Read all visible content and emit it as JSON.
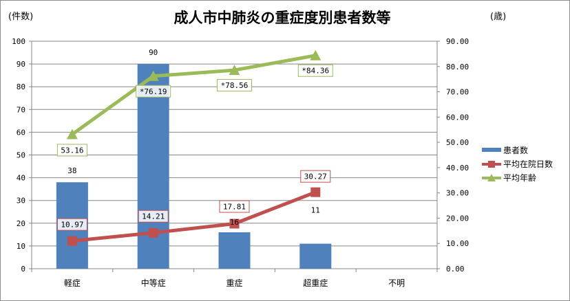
{
  "chart_data": {
    "type": "bar",
    "title": "成人市中肺炎の重症度別患者数等",
    "y_left_unit": "(件数)",
    "y_right_unit": "(歳)",
    "categories": [
      "軽症",
      "中等症",
      "重症",
      "超重症",
      "不明"
    ],
    "ylim_left": [
      0,
      100
    ],
    "ylim_right": [
      0,
      90
    ],
    "left_ticks": [
      "0",
      "10",
      "20",
      "30",
      "40",
      "50",
      "60",
      "70",
      "80",
      "90",
      "100"
    ],
    "right_ticks": [
      "0.00",
      "10.00",
      "20.00",
      "30.00",
      "40.00",
      "50.00",
      "60.00",
      "70.00",
      "80.00",
      "90.00"
    ],
    "grid": true,
    "legend_position": "right",
    "series": [
      {
        "name": "患者数",
        "kind": "bar",
        "axis": "left",
        "color": "#4f81bd",
        "values": [
          38,
          90,
          16,
          11,
          null
        ],
        "labels": [
          "38",
          "90",
          "16",
          "11",
          ""
        ]
      },
      {
        "name": "平均在院日数",
        "kind": "line",
        "axis": "right",
        "color": "#c0504d",
        "marker": "square",
        "values": [
          10.97,
          14.21,
          17.81,
          30.27,
          null
        ],
        "labels": [
          "10.97",
          "14.21",
          "17.81",
          "30.27",
          ""
        ]
      },
      {
        "name": "平均年齢",
        "kind": "line",
        "axis": "right",
        "color": "#9bbb59",
        "marker": "triangle",
        "values": [
          53.16,
          76.19,
          78.56,
          84.36,
          null
        ],
        "labels": [
          "53.16",
          "*76.19",
          "*78.56",
          "*84.36",
          ""
        ]
      }
    ]
  }
}
